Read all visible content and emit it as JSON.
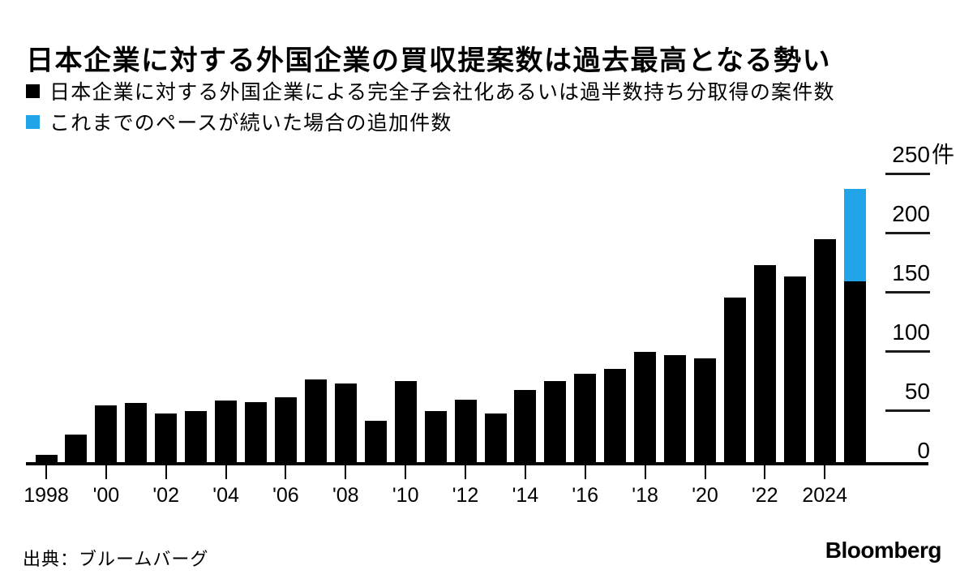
{
  "title": "日本企業に対する外国企業の買収提案数は過去最高となる勢い",
  "legend": [
    {
      "label": "日本企業に対する外国企業による完全子会社化あるいは過半数持ち分取得の案件数",
      "color": "#000000"
    },
    {
      "label": "これまでのペースが続いた場合の追加件数",
      "color": "#21A5E8"
    }
  ],
  "source": "出典：ブルームバーグ",
  "brand": "Bloomberg",
  "colors": {
    "actual": "#000000",
    "projected": "#21A5E8",
    "text": "#000000",
    "background": "#ffffff"
  },
  "chart_data": {
    "type": "bar",
    "stacked": true,
    "title": "日本企業に対する外国企業の買収提案数は過去最高となる勢い",
    "unit": "件",
    "categories": [
      1998,
      1999,
      2000,
      2001,
      2002,
      2003,
      2004,
      2005,
      2006,
      2007,
      2008,
      2009,
      2010,
      2011,
      2012,
      2013,
      2014,
      2015,
      2016,
      2017,
      2018,
      2019,
      2020,
      2021,
      2022,
      2023,
      2024,
      2025
    ],
    "series": [
      {
        "name": "日本企業に対する外国企業による完全子会社化あるいは過半数持ち分取得の案件数",
        "color": "#000000",
        "values": [
          9,
          26,
          51,
          53,
          44,
          46,
          55,
          54,
          58,
          73,
          70,
          38,
          72,
          46,
          56,
          44,
          64,
          72,
          78,
          82,
          97,
          94,
          91,
          143,
          171,
          161,
          193,
          157
        ]
      },
      {
        "name": "これまでのペースが続いた場合の追加件数",
        "color": "#21A5E8",
        "values": [
          0,
          0,
          0,
          0,
          0,
          0,
          0,
          0,
          0,
          0,
          0,
          0,
          0,
          0,
          0,
          0,
          0,
          0,
          0,
          0,
          0,
          0,
          0,
          0,
          0,
          0,
          0,
          79
        ]
      }
    ],
    "ylim": [
      0,
      250
    ],
    "y_ticks": [
      {
        "value": 250,
        "label": "250",
        "unit": "件"
      },
      {
        "value": 200,
        "label": "200"
      },
      {
        "value": 150,
        "label": "150"
      },
      {
        "value": 100,
        "label": "100"
      },
      {
        "value": 50,
        "label": "50"
      },
      {
        "value": 0,
        "label": "0"
      }
    ],
    "x_ticks": [
      {
        "year": 1998,
        "label": "1998"
      },
      {
        "year": 2000,
        "label": "'00"
      },
      {
        "year": 2002,
        "label": "'02"
      },
      {
        "year": 2004,
        "label": "'04"
      },
      {
        "year": 2006,
        "label": "'06"
      },
      {
        "year": 2008,
        "label": "'08"
      },
      {
        "year": 2010,
        "label": "'10"
      },
      {
        "year": 2012,
        "label": "'12"
      },
      {
        "year": 2014,
        "label": "'14"
      },
      {
        "year": 2016,
        "label": "'16"
      },
      {
        "year": 2018,
        "label": "'18"
      },
      {
        "year": 2020,
        "label": "'20"
      },
      {
        "year": 2022,
        "label": "'22"
      },
      {
        "year": 2024,
        "label": "2024"
      }
    ],
    "legend_position": "top-left",
    "grid": "right-side tick dashes only"
  }
}
